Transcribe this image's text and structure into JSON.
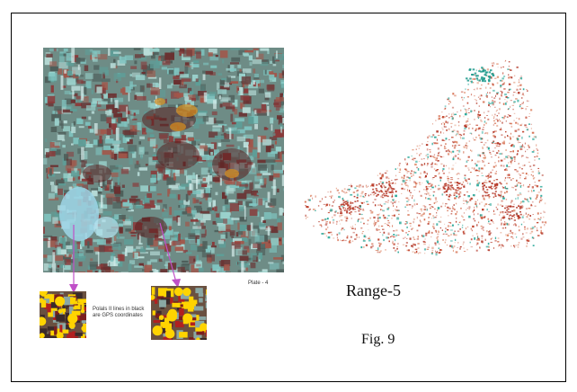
{
  "figure": {
    "label": "Fig. 9",
    "range_label": "Range-5",
    "plate_label": "Plate - 4",
    "zoom_caption": "Polals II lines in black are GPS coordinates"
  },
  "colors": {
    "vegetation_cyan": "#7fc4c0",
    "forest_red": "#8a3a3a",
    "highlight_yellow": "#ffd400",
    "arrow_magenta": "#c050c8",
    "range_red": "#c0402a",
    "range_teal": "#2aa89a"
  },
  "icons": {
    "arrow": "down-arrow"
  }
}
